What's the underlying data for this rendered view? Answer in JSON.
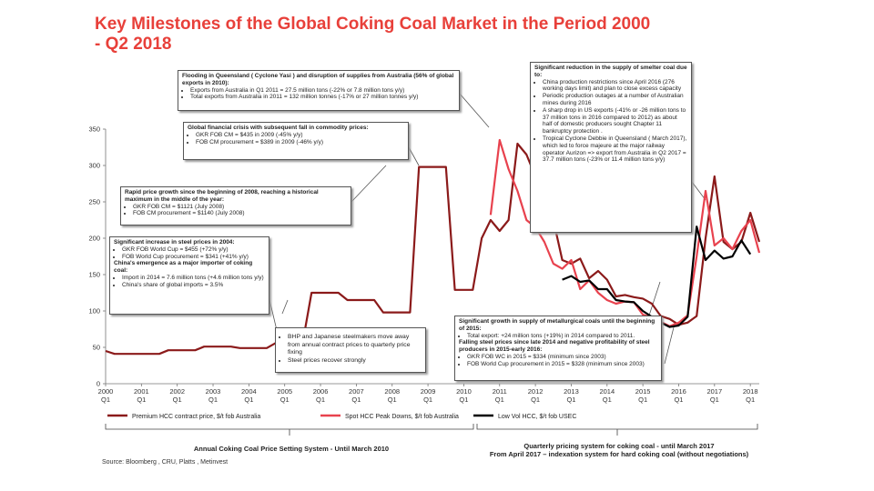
{
  "title": "Key Milestones of the Global Coking Coal Market in the Period 2000 - Q2 2018",
  "source": "Source: Bloomberg , CRU, Platts , Metinvest",
  "periods": {
    "annual": "Annual Coking Coal Price Setting System - Until March 2010",
    "quarterly_line1": "Quarterly pricing system for coking coal - until March 2017",
    "quarterly_line2": "From April 2017 – indexation system for hard coking coal (without negotiations)"
  },
  "annotations": {
    "flood": {
      "heading": "Flooding in Queensland ( Cyclone Yasi ) and disruption of supplies from Australia (56% of global exports in 2010):",
      "items": [
        "Exports from Australia in Q1 2011 = 27.5 million tons (-22% or 7.8 million tons y/y)",
        "Total exports from Australia in 2011 = 132 million tonnes (-17% or 27 million tonnes y/y)"
      ]
    },
    "crisis": {
      "heading": "Global financial crisis with subsequent fall in commodity prices:",
      "items": [
        "GKR FOB CM = $435 in 2009 (-45% y/y)",
        "FOB CM procurement = $389 in 2009 (-46% y/y)"
      ]
    },
    "growth2008": {
      "heading": "Rapid price growth since the beginning of 2008, reaching a historical maximum in the middle of the year:",
      "items": [
        "GKR FOB CM = $1121 (July 2008)",
        "FOB CM procurement = $1140 (July 2008)"
      ]
    },
    "steel2004": {
      "heading": "Significant increase in steel prices in 2004:",
      "items": [
        "GKR FOB World Cup = $455 (+72% y/y)",
        "FOB World Cup procurement = $341 (+41% y/y)"
      ],
      "heading2": "China's emergence as a major importer of coking coal:",
      "items2": [
        "Import in 2014 = 7.6 million tons (+4.6 million tons y/y)",
        "China's share of global imports = 3.5%"
      ]
    },
    "bhp": {
      "items": [
        "BHP and Japanese steelmakers move away from annual contract prices to quarterly price fixing",
        "Steel prices recover strongly"
      ]
    },
    "supply2015": {
      "heading": "Significant growth in supply of metallurgical coals until the beginning of 2015:",
      "items": [
        "Total export: +24 million tons (+19%) in 2014 compared to 2011."
      ],
      "heading2": "Falling steel prices since late 2014 and negative profitability of steel producers in 2015-early 2016:",
      "items2": [
        "GKR FOB WC in 2015 = $334 (minimum since 2003)",
        "FOB World Cup procurement in 2015 = $328 (minimum since 2003)"
      ]
    },
    "smelter": {
      "heading": "Significant reduction in the supply of smelter coal due to:",
      "items": [
        "China production restrictions since April 2016 (276 working days limit) and plan to close excess capacity",
        "Periodic production outages at a number of Australian mines during 2016",
        "A sharp drop in US exports (-41% or -26 million tons to 37 million tons in 2016 compared to 2012) as about half of domestic producers sought Chapter 11 bankruptcy protection .",
        "Tropical Cyclone Debbie in Queensland ( March 2017), which led to force majeure at the major railway operator Aurizon => export from Australia in Q2 2017 = 37.7 million tons (-23% or 11.4 million tons y/y)"
      ]
    }
  },
  "chart_data": {
    "type": "line",
    "xlabel": "",
    "ylabel": "",
    "ylim": [
      0,
      350
    ],
    "yticks": [
      0,
      50,
      100,
      150,
      200,
      250,
      300,
      350
    ],
    "xlim": [
      2000.0,
      2018.25
    ],
    "xtick_labels": [
      "2000 Q1",
      "2001 Q1",
      "2002 Q1",
      "2003 Q1",
      "2004 Q1",
      "2005 Q1",
      "2006 Q1",
      "2007 Q1",
      "2008 Q1",
      "2009 Q1",
      "2010 Q1",
      "2011 Q1",
      "2012 Q1",
      "2013 Q1",
      "2014 Q1",
      "2015 Q1",
      "2016 Q1",
      "2017 Q1",
      "2018 Q1"
    ],
    "legend_position": "bottom",
    "grid": false,
    "series": [
      {
        "name": "Premium HCC contract price, $/t fob Australia",
        "color": "#8b1a1a",
        "points": [
          [
            2000.0,
            45
          ],
          [
            2000.25,
            41
          ],
          [
            2001.0,
            41
          ],
          [
            2001.5,
            41
          ],
          [
            2001.75,
            46
          ],
          [
            2002.5,
            46
          ],
          [
            2002.75,
            51
          ],
          [
            2003.5,
            51
          ],
          [
            2003.75,
            49
          ],
          [
            2004.5,
            49
          ],
          [
            2004.75,
            56
          ],
          [
            2005.5,
            56
          ],
          [
            2005.75,
            125
          ],
          [
            2006.5,
            125
          ],
          [
            2006.75,
            115
          ],
          [
            2007.5,
            115
          ],
          [
            2007.75,
            98
          ],
          [
            2008.5,
            98
          ],
          [
            2008.75,
            298
          ],
          [
            2009.5,
            298
          ],
          [
            2009.75,
            129
          ],
          [
            2010.25,
            129
          ],
          [
            2010.5,
            200
          ],
          [
            2010.75,
            225
          ],
          [
            2011.0,
            210
          ],
          [
            2011.25,
            225
          ],
          [
            2011.5,
            330
          ],
          [
            2011.75,
            315
          ],
          [
            2012.0,
            285
          ],
          [
            2012.25,
            235
          ],
          [
            2012.5,
            225
          ],
          [
            2012.75,
            170
          ],
          [
            2013.0,
            165
          ],
          [
            2013.25,
            172
          ],
          [
            2013.5,
            145
          ],
          [
            2013.75,
            155
          ],
          [
            2014.0,
            143
          ],
          [
            2014.25,
            120
          ],
          [
            2014.5,
            122
          ],
          [
            2014.75,
            119
          ],
          [
            2015.0,
            117
          ],
          [
            2015.25,
            110
          ],
          [
            2015.5,
            93
          ],
          [
            2015.75,
            89
          ],
          [
            2016.0,
            81
          ],
          [
            2016.25,
            84
          ],
          [
            2016.5,
            93
          ],
          [
            2016.75,
            200
          ],
          [
            2017.0,
            285
          ],
          [
            2017.25,
            195
          ],
          [
            2017.5,
            185
          ],
          [
            2017.75,
            195
          ],
          [
            2018.0,
            235
          ],
          [
            2018.25,
            195
          ]
        ]
      },
      {
        "name": "Spot HCC Peak Downs, $/t fob Australia",
        "color": "#e8424e",
        "points": [
          [
            2010.75,
            232
          ],
          [
            2011.0,
            335
          ],
          [
            2011.25,
            295
          ],
          [
            2011.5,
            265
          ],
          [
            2011.75,
            225
          ],
          [
            2012.0,
            215
          ],
          [
            2012.25,
            195
          ],
          [
            2012.5,
            165
          ],
          [
            2012.75,
            158
          ],
          [
            2013.0,
            170
          ],
          [
            2013.25,
            130
          ],
          [
            2013.5,
            142
          ],
          [
            2013.75,
            125
          ],
          [
            2014.0,
            115
          ],
          [
            2014.25,
            110
          ],
          [
            2014.5,
            113
          ],
          [
            2014.75,
            112
          ],
          [
            2015.0,
            95
          ],
          [
            2015.25,
            91
          ],
          [
            2015.5,
            85
          ],
          [
            2015.75,
            79
          ],
          [
            2016.0,
            84
          ],
          [
            2016.25,
            94
          ],
          [
            2016.5,
            175
          ],
          [
            2016.75,
            265
          ],
          [
            2017.0,
            190
          ],
          [
            2017.25,
            200
          ],
          [
            2017.5,
            185
          ],
          [
            2017.75,
            210
          ],
          [
            2018.0,
            225
          ],
          [
            2018.25,
            180
          ]
        ]
      },
      {
        "name": "Low Vol HCC, $/t fob USEC",
        "color": "#000000",
        "points": [
          [
            2012.75,
            143
          ],
          [
            2013.0,
            148
          ],
          [
            2013.25,
            140
          ],
          [
            2013.5,
            142
          ],
          [
            2013.75,
            130
          ],
          [
            2014.0,
            130
          ],
          [
            2014.25,
            115
          ],
          [
            2014.5,
            113
          ],
          [
            2014.75,
            112
          ],
          [
            2015.0,
            100
          ],
          [
            2015.25,
            92
          ],
          [
            2015.5,
            84
          ],
          [
            2015.75,
            78
          ],
          [
            2016.0,
            80
          ],
          [
            2016.25,
            92
          ],
          [
            2016.5,
            216
          ],
          [
            2016.75,
            170
          ],
          [
            2017.0,
            183
          ],
          [
            2017.25,
            172
          ],
          [
            2017.5,
            175
          ],
          [
            2017.75,
            197
          ],
          [
            2018.0,
            178
          ]
        ]
      }
    ]
  }
}
